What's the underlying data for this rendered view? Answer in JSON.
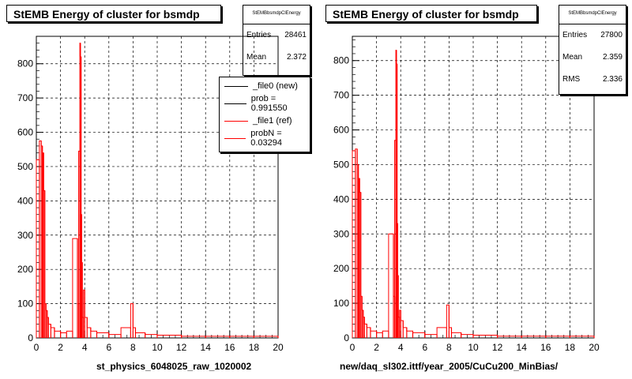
{
  "chart_data": [
    {
      "type": "histogram",
      "title": "StEMB Energy of cluster for bsmdp",
      "hist_name": "StEMBbsmdpClEnergy",
      "xlabel": "st_physics_6048025_raw_1020002",
      "xlim": [
        0,
        20
      ],
      "ylim": [
        0,
        880
      ],
      "x_ticks": [
        0,
        2,
        4,
        6,
        8,
        10,
        12,
        14,
        16,
        18,
        20
      ],
      "y_ticks": [
        0,
        100,
        200,
        300,
        400,
        500,
        600,
        700,
        800
      ],
      "grid": true,
      "stats": {
        "entries_label": "Entries",
        "entries": "28461",
        "mean_label": "Mean",
        "mean": "2.372"
      },
      "legend": [
        {
          "label": "_file0 (new)",
          "color": "#000000"
        },
        {
          "label": "prob = 0.991550",
          "color": "#000000"
        },
        {
          "label": "_file1 (ref)",
          "color": "#ff0000"
        },
        {
          "label": "probN = 0.03294",
          "color": "#ff0000"
        }
      ],
      "series": [
        {
          "name": "_file1 (ref)",
          "color": "#ff0000",
          "x": [
            0.25,
            0.4,
            0.5,
            0.55,
            0.6,
            0.7,
            0.8,
            0.9,
            1.0,
            1.2,
            1.5,
            2.0,
            2.5,
            3.0,
            3.4,
            3.5,
            3.6,
            3.65,
            3.7,
            3.75,
            3.8,
            3.9,
            4.0,
            4.2,
            4.5,
            5.0,
            6.0,
            7.0,
            7.8,
            8.0,
            8.2,
            9.0,
            10.0,
            12.0,
            14.0,
            16.0,
            18.0,
            20.0
          ],
          "y": [
            520,
            575,
            560,
            300,
            540,
            430,
            100,
            80,
            60,
            40,
            30,
            20,
            15,
            20,
            290,
            100,
            545,
            860,
            820,
            360,
            220,
            60,
            140,
            60,
            30,
            20,
            15,
            10,
            30,
            100,
            30,
            15,
            10,
            8,
            5,
            5,
            5,
            5
          ]
        }
      ]
    },
    {
      "type": "histogram",
      "title": "StEMB Energy of cluster for bsmdp",
      "hist_name": "StEMBbsmdpClEnergy",
      "xlabel": "new/daq_sl302.ittf/year_2005/CuCu200_MinBias/",
      "xlim": [
        0,
        20
      ],
      "ylim": [
        0,
        870
      ],
      "x_ticks": [
        0,
        2,
        4,
        6,
        8,
        10,
        12,
        14,
        16,
        18,
        20
      ],
      "y_ticks": [
        0,
        100,
        200,
        300,
        400,
        500,
        600,
        700,
        800
      ],
      "grid": true,
      "stats": {
        "entries_label": "Entries",
        "entries": "27800",
        "mean_label": "Mean",
        "mean": "2.359",
        "rms_label": "RMS",
        "rms": "2.336"
      },
      "series": [
        {
          "name": "",
          "color": "#ff0000",
          "x": [
            0.25,
            0.4,
            0.5,
            0.55,
            0.6,
            0.7,
            0.8,
            0.9,
            1.0,
            1.2,
            1.5,
            2.0,
            2.5,
            3.0,
            3.4,
            3.5,
            3.6,
            3.65,
            3.7,
            3.75,
            3.8,
            3.9,
            4.0,
            4.2,
            4.5,
            5.0,
            6.0,
            7.0,
            7.8,
            8.0,
            8.2,
            9.0,
            10.0,
            12.0,
            14.0,
            16.0,
            18.0,
            20.0
          ],
          "y": [
            540,
            545,
            500,
            300,
            460,
            420,
            120,
            80,
            60,
            40,
            30,
            20,
            15,
            20,
            300,
            120,
            570,
            830,
            790,
            330,
            180,
            60,
            80,
            50,
            30,
            20,
            15,
            10,
            30,
            95,
            30,
            15,
            10,
            8,
            5,
            5,
            5,
            5
          ]
        }
      ]
    }
  ]
}
